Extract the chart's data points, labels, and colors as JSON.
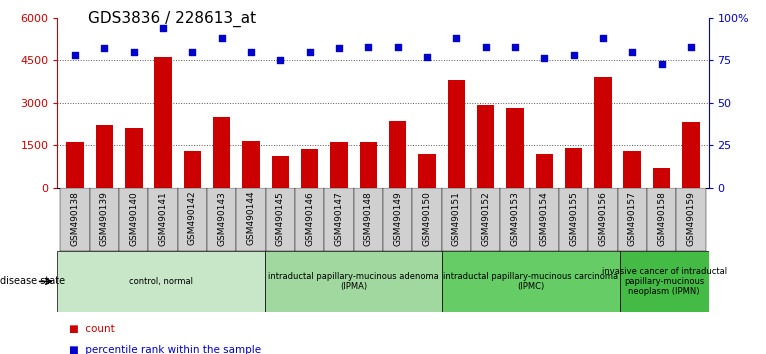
{
  "title": "GDS3836 / 228613_at",
  "samples": [
    "GSM490138",
    "GSM490139",
    "GSM490140",
    "GSM490141",
    "GSM490142",
    "GSM490143",
    "GSM490144",
    "GSM490145",
    "GSM490146",
    "GSM490147",
    "GSM490148",
    "GSM490149",
    "GSM490150",
    "GSM490151",
    "GSM490152",
    "GSM490153",
    "GSM490154",
    "GSM490155",
    "GSM490156",
    "GSM490157",
    "GSM490158",
    "GSM490159"
  ],
  "counts": [
    1600,
    2200,
    2100,
    4600,
    1300,
    2500,
    1650,
    1100,
    1350,
    1600,
    1600,
    2350,
    1200,
    3800,
    2900,
    2800,
    1200,
    1400,
    3900,
    1300,
    700,
    2300
  ],
  "percentiles": [
    78,
    82,
    80,
    94,
    80,
    88,
    80,
    75,
    80,
    82,
    83,
    83,
    77,
    88,
    83,
    83,
    76,
    78,
    88,
    80,
    73,
    83
  ],
  "left_ylim": [
    0,
    6000
  ],
  "left_yticks": [
    0,
    1500,
    3000,
    4500,
    6000
  ],
  "left_yticklabels": [
    "0",
    "1500",
    "3000",
    "4500",
    "6000"
  ],
  "right_ylim": [
    0,
    100
  ],
  "right_yticks": [
    0,
    25,
    50,
    75,
    100
  ],
  "right_yticklabels": [
    "0",
    "25",
    "50",
    "75",
    "100%"
  ],
  "bar_color": "#cc0000",
  "scatter_color": "#0000cc",
  "groups": [
    {
      "label": "control, normal",
      "start": 0,
      "end": 7,
      "color": "#c8e6c8"
    },
    {
      "label": "intraductal papillary-mucinous adenoma\n(IPMA)",
      "start": 7,
      "end": 13,
      "color": "#a0d8a0"
    },
    {
      "label": "intraductal papillary-mucinous carcinoma\n(IPMC)",
      "start": 13,
      "end": 19,
      "color": "#66cc66"
    },
    {
      "label": "invasive cancer of intraductal\npapillary-mucinous\nneoplasm (IPMN)",
      "start": 19,
      "end": 22,
      "color": "#44bb44"
    }
  ],
  "grid_yticks": [
    1500,
    3000,
    4500
  ],
  "dotted_line_color": "#555555",
  "background_color": "#ffffff",
  "left_axis_color": "#cc0000",
  "right_axis_color": "#0000cc",
  "title_fontsize": 11,
  "legend_items": [
    "count",
    "percentile rank within the sample"
  ],
  "tick_bg_color": "#d0d0d0",
  "tick_fontsize": 6.5,
  "group_fontsize": 6,
  "disease_state_label": "disease state"
}
